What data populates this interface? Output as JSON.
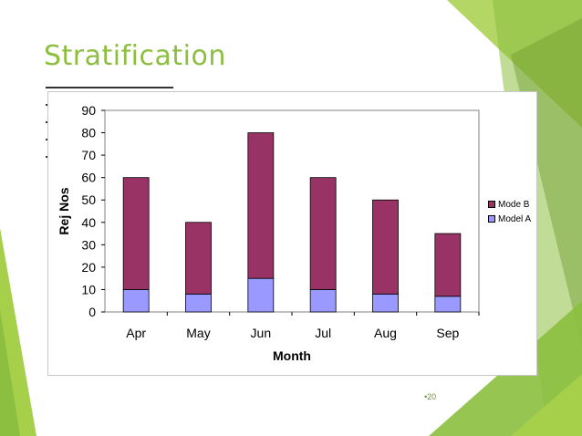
{
  "slide": {
    "title": "Stratification",
    "page_number": "•20"
  },
  "colors": {
    "title": "#8cbf3f",
    "mode_b": "#993366",
    "model_a": "#9999ff",
    "plot_background": "#ffffff",
    "decor_green_light": "#a6cf4a",
    "decor_green_dark": "#6f9c2e"
  },
  "chart_data": {
    "type": "bar",
    "stacked": true,
    "categories": [
      "Apr",
      "May",
      "Jun",
      "Jul",
      "Aug",
      "Sep"
    ],
    "series": [
      {
        "name": "Model A",
        "values": [
          10,
          8,
          15,
          10,
          8,
          7
        ]
      },
      {
        "name": "Mode B",
        "values": [
          50,
          32,
          65,
          50,
          42,
          28
        ]
      }
    ],
    "xlabel": "Month",
    "ylabel": "Rej Nos",
    "ylim": [
      0,
      90
    ],
    "yticks": [
      0,
      10,
      20,
      30,
      40,
      50,
      60,
      70,
      80,
      90
    ],
    "grid": false,
    "legend_position": "right",
    "legend_order": [
      "Mode B",
      "Model A"
    ]
  }
}
